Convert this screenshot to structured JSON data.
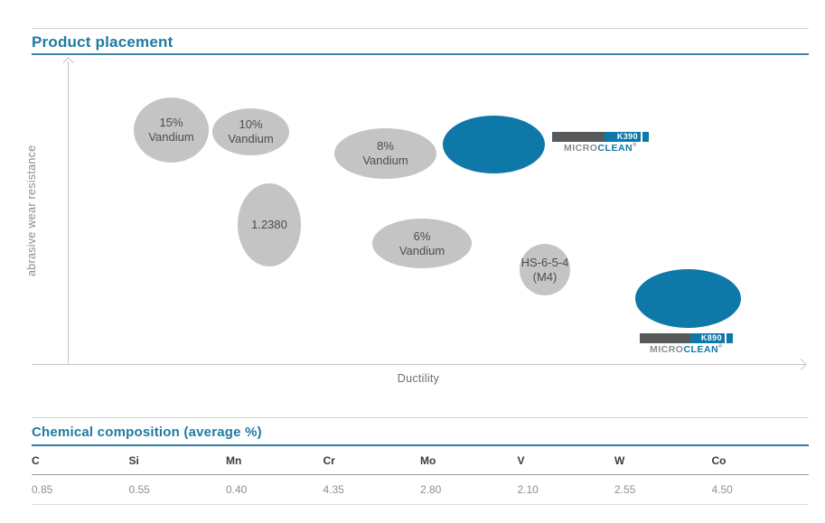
{
  "page": {
    "title": "Product placement"
  },
  "colors": {
    "brand_blue": "#0e78a8",
    "heading_blue": "#1e7aa3",
    "bubble_gray": "#c4c4c4",
    "logo_dark_gray": "#58595b"
  },
  "chart_data": {
    "type": "scatter",
    "title": "Product placement",
    "xlabel": "Ductility",
    "ylabel": "abrasive wear resistance",
    "axes": {
      "x_range": [
        0,
        100
      ],
      "y_range": [
        0,
        100
      ],
      "ticks": "none",
      "grid": false,
      "arrows": true
    },
    "points": [
      {
        "label": "15% Vandium",
        "lines": [
          "15%",
          "Vandium"
        ],
        "x": 14,
        "y": 77,
        "color": "#c4c4c4",
        "kind": "competitor"
      },
      {
        "label": "10% Vandium",
        "lines": [
          "10%",
          "Vandium"
        ],
        "x": 25,
        "y": 76,
        "color": "#c4c4c4",
        "kind": "competitor"
      },
      {
        "label": "8% Vandium",
        "lines": [
          "8%",
          "Vandium"
        ],
        "x": 43,
        "y": 69,
        "color": "#c4c4c4",
        "kind": "competitor"
      },
      {
        "label": "K390 MICROCLEAN",
        "lines": [],
        "x": 58,
        "y": 72,
        "color": "#0e78a8",
        "kind": "product"
      },
      {
        "label": "1.2380",
        "lines": [
          "1.2380"
        ],
        "x": 27,
        "y": 46,
        "color": "#c4c4c4",
        "kind": "competitor"
      },
      {
        "label": "6% Vandium",
        "lines": [
          "6%",
          "Vandium"
        ],
        "x": 48,
        "y": 40,
        "color": "#c4c4c4",
        "kind": "competitor"
      },
      {
        "label": "HS-6-5-4 (M4)",
        "lines": [
          "HS-6-5-4",
          "(M4)"
        ],
        "x": 64,
        "y": 31,
        "color": "#c4c4c4",
        "kind": "competitor"
      },
      {
        "label": "K890 MICROCLEAN",
        "lines": [],
        "x": 84,
        "y": 22,
        "color": "#0e78a8",
        "kind": "product"
      }
    ]
  },
  "logos": {
    "k390": {
      "code": "K390",
      "brand_gray": "MICRO",
      "brand_blue": "CLEAN",
      "reg": "®"
    },
    "k890": {
      "code": "K890",
      "brand_gray": "MICRO",
      "brand_blue": "CLEAN",
      "reg": "®"
    }
  },
  "composition_table": {
    "title": "Chemical composition (average %)",
    "columns": [
      "C",
      "Si",
      "Mn",
      "Cr",
      "Mo",
      "V",
      "W",
      "Co"
    ],
    "values": [
      "0.85",
      "0.55",
      "0.40",
      "4.35",
      "2.80",
      "2.10",
      "2.55",
      "4.50"
    ]
  }
}
